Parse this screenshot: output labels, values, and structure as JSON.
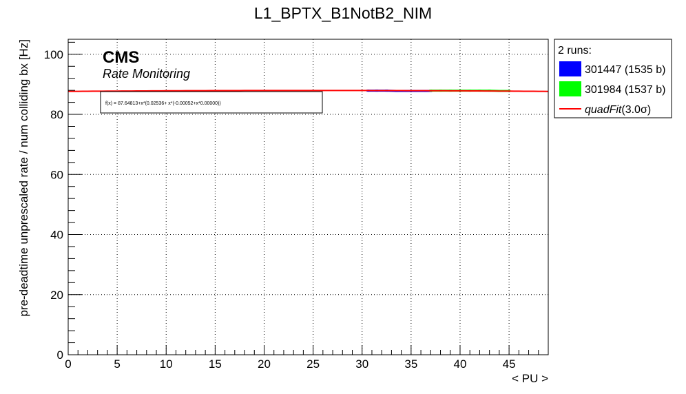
{
  "chart_data": {
    "type": "line",
    "title": "L1_BPTX_B1NotB2_NIM",
    "xlabel": "< PU >",
    "ylabel": "pre-deadtime unprescaled rate / num colliding bx [Hz]",
    "xlim": [
      0,
      49
    ],
    "ylim": [
      0,
      105
    ],
    "x_ticks": [
      0,
      5,
      10,
      15,
      20,
      25,
      30,
      35,
      40,
      45
    ],
    "y_ticks": [
      0,
      20,
      40,
      60,
      80,
      100
    ],
    "grid": true,
    "cms_label": "CMS",
    "sublabel": "Rate Monitoring",
    "fit_formula": "f(x) = 87.64813+x*(0.02536+ x*(-0.00052+x*0.00000))",
    "fit": {
      "name": "quadFit",
      "sigma_label": "(3.0σ)",
      "coefficients": [
        87.64813,
        0.02536,
        -0.00052,
        0.0
      ],
      "x_range": [
        0,
        49
      ],
      "color": "#ff0000"
    },
    "legend": {
      "header": "2 runs:",
      "position": "right",
      "entries": [
        {
          "label": "301447 (1535 b)",
          "color": "#0000ff"
        },
        {
          "label": "301984 (1537 b)",
          "color": "#00ff00"
        }
      ]
    },
    "series": [
      {
        "label": "301447 (1535 b)",
        "color": "#0000ff",
        "x": [
          30.6,
          31.5,
          32.5,
          33.5,
          34.5,
          35.5,
          36.5,
          37.0
        ],
        "y": [
          87.9,
          87.9,
          87.9,
          87.8,
          87.8,
          87.8,
          87.8,
          87.8
        ]
      },
      {
        "label": "301984 (1537 b)",
        "color": "#00ff00",
        "x": [
          37.0,
          38.0,
          39.0,
          40.0,
          41.0,
          42.0,
          43.0,
          44.0,
          45.0
        ],
        "y": [
          87.9,
          87.9,
          87.9,
          87.9,
          87.9,
          87.9,
          87.9,
          87.8,
          87.8
        ]
      }
    ]
  }
}
